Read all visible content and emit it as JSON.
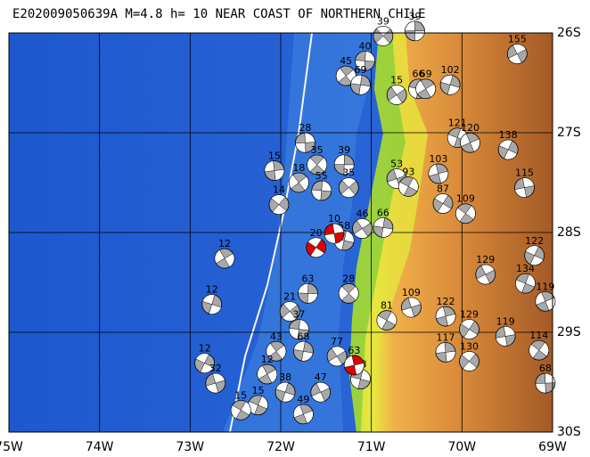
{
  "map": {
    "title": "E202009050639A M=4.8 h= 10 NEAR COAST OF NORTHERN CHILE",
    "xlim": [
      -75,
      -69
    ],
    "ylim": [
      -30,
      -26
    ],
    "xticks": [
      {
        "value": -75,
        "label": "75W"
      },
      {
        "value": -74,
        "label": "74W"
      },
      {
        "value": -73,
        "label": "73W"
      },
      {
        "value": -72,
        "label": "72W"
      },
      {
        "value": -71,
        "label": "71W"
      },
      {
        "value": -70,
        "label": "70W"
      },
      {
        "value": -69,
        "label": "69W"
      }
    ],
    "yticks": [
      {
        "value": -26,
        "label": "26S"
      },
      {
        "value": -27,
        "label": "27S"
      },
      {
        "value": -28,
        "label": "28S"
      },
      {
        "value": -29,
        "label": "29S"
      },
      {
        "value": -30,
        "label": "30S"
      }
    ],
    "grid": true,
    "events": [
      {
        "lon": -70.52,
        "lat": -25.98,
        "depth": 39
      },
      {
        "lon": -70.87,
        "lat": -26.03,
        "depth": 39
      },
      {
        "lon": -71.07,
        "lat": -26.28,
        "depth": 40
      },
      {
        "lon": -71.28,
        "lat": -26.43,
        "depth": 45
      },
      {
        "lon": -71.12,
        "lat": -26.52,
        "depth": 69
      },
      {
        "lon": -70.72,
        "lat": -26.62,
        "depth": 15
      },
      {
        "lon": -70.48,
        "lat": -26.56,
        "depth": 66
      },
      {
        "lon": -70.4,
        "lat": -26.56,
        "depth": 69
      },
      {
        "lon": -70.13,
        "lat": -26.52,
        "depth": 102
      },
      {
        "lon": -69.39,
        "lat": -26.21,
        "depth": 155
      },
      {
        "lon": -70.05,
        "lat": -27.05,
        "depth": 121
      },
      {
        "lon": -69.91,
        "lat": -27.1,
        "depth": 120
      },
      {
        "lon": -69.49,
        "lat": -27.17,
        "depth": 138
      },
      {
        "lon": -70.72,
        "lat": -27.46,
        "depth": 53
      },
      {
        "lon": -70.59,
        "lat": -27.54,
        "depth": 93
      },
      {
        "lon": -70.26,
        "lat": -27.41,
        "depth": 103
      },
      {
        "lon": -70.21,
        "lat": -27.71,
        "depth": 87
      },
      {
        "lon": -69.31,
        "lat": -27.55,
        "depth": 115
      },
      {
        "lon": -69.96,
        "lat": -27.81,
        "depth": 109
      },
      {
        "lon": -72.07,
        "lat": -27.38,
        "depth": 15
      },
      {
        "lon": -72.02,
        "lat": -27.72,
        "depth": 14
      },
      {
        "lon": -71.73,
        "lat": -27.1,
        "depth": 28
      },
      {
        "lon": -71.6,
        "lat": -27.32,
        "depth": 35
      },
      {
        "lon": -71.3,
        "lat": -27.32,
        "depth": 39
      },
      {
        "lon": -71.25,
        "lat": -27.55,
        "depth": 35
      },
      {
        "lon": -71.55,
        "lat": -27.58,
        "depth": 55
      },
      {
        "lon": -71.8,
        "lat": -27.5,
        "depth": 18
      },
      {
        "lon": -70.87,
        "lat": -27.95,
        "depth": 66
      },
      {
        "lon": -71.1,
        "lat": -27.96,
        "depth": 46
      },
      {
        "lon": -71.3,
        "lat": -28.08,
        "depth": 58
      },
      {
        "lon": -72.62,
        "lat": -28.26,
        "depth": 12
      },
      {
        "lon": -72.76,
        "lat": -28.72,
        "depth": 12
      },
      {
        "lon": -69.74,
        "lat": -28.42,
        "depth": 129
      },
      {
        "lon": -69.3,
        "lat": -28.51,
        "depth": 134
      },
      {
        "lon": -69.08,
        "lat": -28.69,
        "depth": 119
      },
      {
        "lon": -69.2,
        "lat": -28.23,
        "depth": 122
      },
      {
        "lon": -70.56,
        "lat": -28.75,
        "depth": 109
      },
      {
        "lon": -70.83,
        "lat": -28.88,
        "depth": 81
      },
      {
        "lon": -70.18,
        "lat": -28.84,
        "depth": 122
      },
      {
        "lon": -69.92,
        "lat": -28.97,
        "depth": 129
      },
      {
        "lon": -69.52,
        "lat": -29.04,
        "depth": 119
      },
      {
        "lon": -69.15,
        "lat": -29.18,
        "depth": 114
      },
      {
        "lon": -70.18,
        "lat": -29.2,
        "depth": 117
      },
      {
        "lon": -69.92,
        "lat": -29.29,
        "depth": 130
      },
      {
        "lon": -69.08,
        "lat": -29.51,
        "depth": 68
      },
      {
        "lon": -71.25,
        "lat": -28.61,
        "depth": 28
      },
      {
        "lon": -71.7,
        "lat": -28.61,
        "depth": 63
      },
      {
        "lon": -71.9,
        "lat": -28.79,
        "depth": 21
      },
      {
        "lon": -71.8,
        "lat": -28.97,
        "depth": 37
      },
      {
        "lon": -72.05,
        "lat": -29.19,
        "depth": 43
      },
      {
        "lon": -71.75,
        "lat": -29.19,
        "depth": 68
      },
      {
        "lon": -71.38,
        "lat": -29.24,
        "depth": 77
      },
      {
        "lon": -71.12,
        "lat": -29.47,
        "depth": 48
      },
      {
        "lon": -72.15,
        "lat": -29.42,
        "depth": 12
      },
      {
        "lon": -71.95,
        "lat": -29.6,
        "depth": 38
      },
      {
        "lon": -71.56,
        "lat": -29.6,
        "depth": 47
      },
      {
        "lon": -72.25,
        "lat": -29.73,
        "depth": 15
      },
      {
        "lon": -71.75,
        "lat": -29.82,
        "depth": 49
      },
      {
        "lon": -72.84,
        "lat": -29.31,
        "depth": 12
      },
      {
        "lon": -72.72,
        "lat": -29.51,
        "depth": 32
      },
      {
        "lon": -72.44,
        "lat": -29.78,
        "depth": 15
      },
      {
        "lon": -71.19,
        "lat": -29.33,
        "depth": 63,
        "color": "#e00000"
      },
      {
        "lon": -71.61,
        "lat": -28.15,
        "depth": 20,
        "color": "#e00000"
      },
      {
        "lon": -71.41,
        "lat": -28.01,
        "depth": 10,
        "color": "#e00000"
      }
    ]
  }
}
